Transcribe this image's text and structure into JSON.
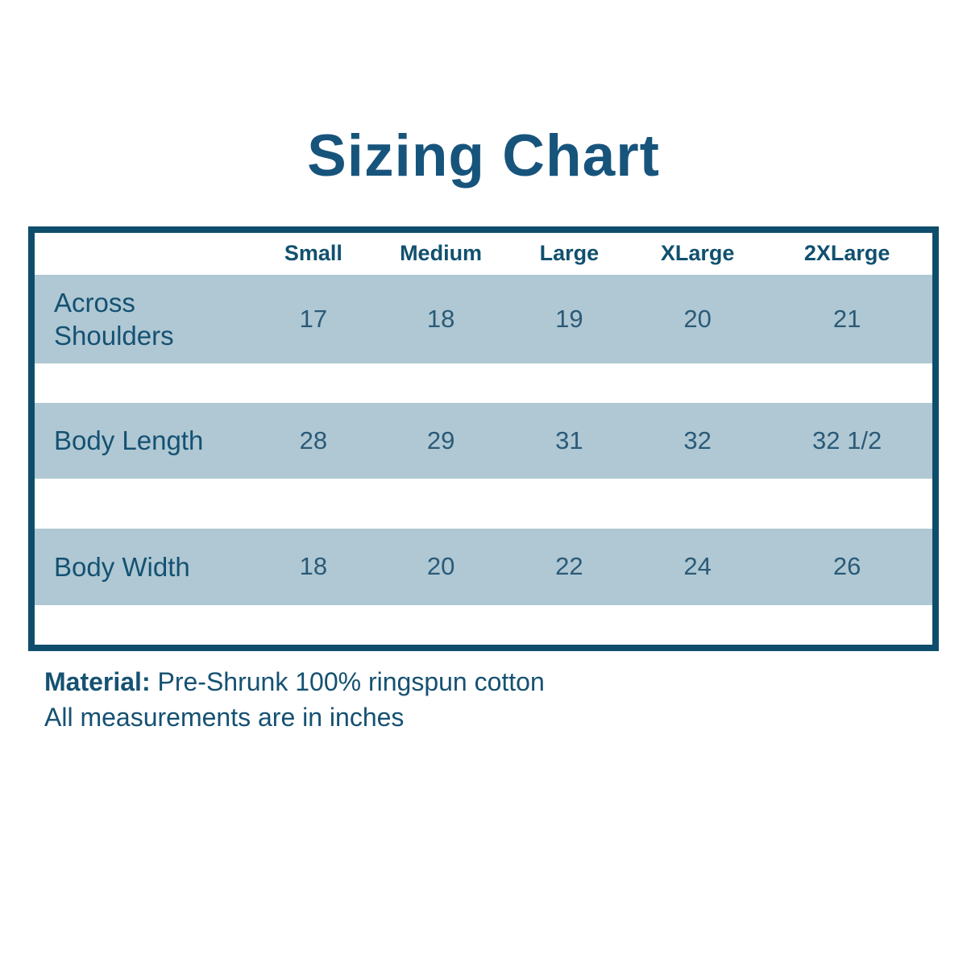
{
  "title": "Sizing Chart",
  "table": {
    "size_columns": [
      "Small",
      "Medium",
      "Large",
      "XLarge",
      "2XLarge"
    ],
    "rows": [
      {
        "label": "Across Shoulders",
        "values": [
          "17",
          "18",
          "19",
          "20",
          "21"
        ]
      },
      {
        "label": "Body Length",
        "values": [
          "28",
          "29",
          "31",
          "32",
          "32 1/2"
        ]
      },
      {
        "label": "Body Width",
        "values": [
          "18",
          "20",
          "22",
          "24",
          "26"
        ]
      }
    ]
  },
  "footer": {
    "material_label": "Material:",
    "material_text": " Pre-Shrunk 100% ringspun cotton",
    "note": "All measurements are in inches"
  },
  "colors": {
    "accent_text": "#17547C",
    "table_border": "#0E4D6C",
    "row_band": "#AFC8D4",
    "value_text": "#2B5A77"
  },
  "chart_data": {
    "type": "table",
    "title": "Sizing Chart",
    "columns": [
      "Small",
      "Medium",
      "Large",
      "XLarge",
      "2XLarge"
    ],
    "series": [
      {
        "name": "Across Shoulders",
        "values": [
          17,
          18,
          19,
          20,
          21
        ]
      },
      {
        "name": "Body Length",
        "values": [
          28,
          29,
          31,
          32,
          32.5
        ]
      },
      {
        "name": "Body Width",
        "values": [
          18,
          20,
          22,
          24,
          26
        ]
      }
    ],
    "units": "inches",
    "notes": [
      "Material: Pre-Shrunk 100% ringspun cotton",
      "All measurements are in inches"
    ]
  }
}
